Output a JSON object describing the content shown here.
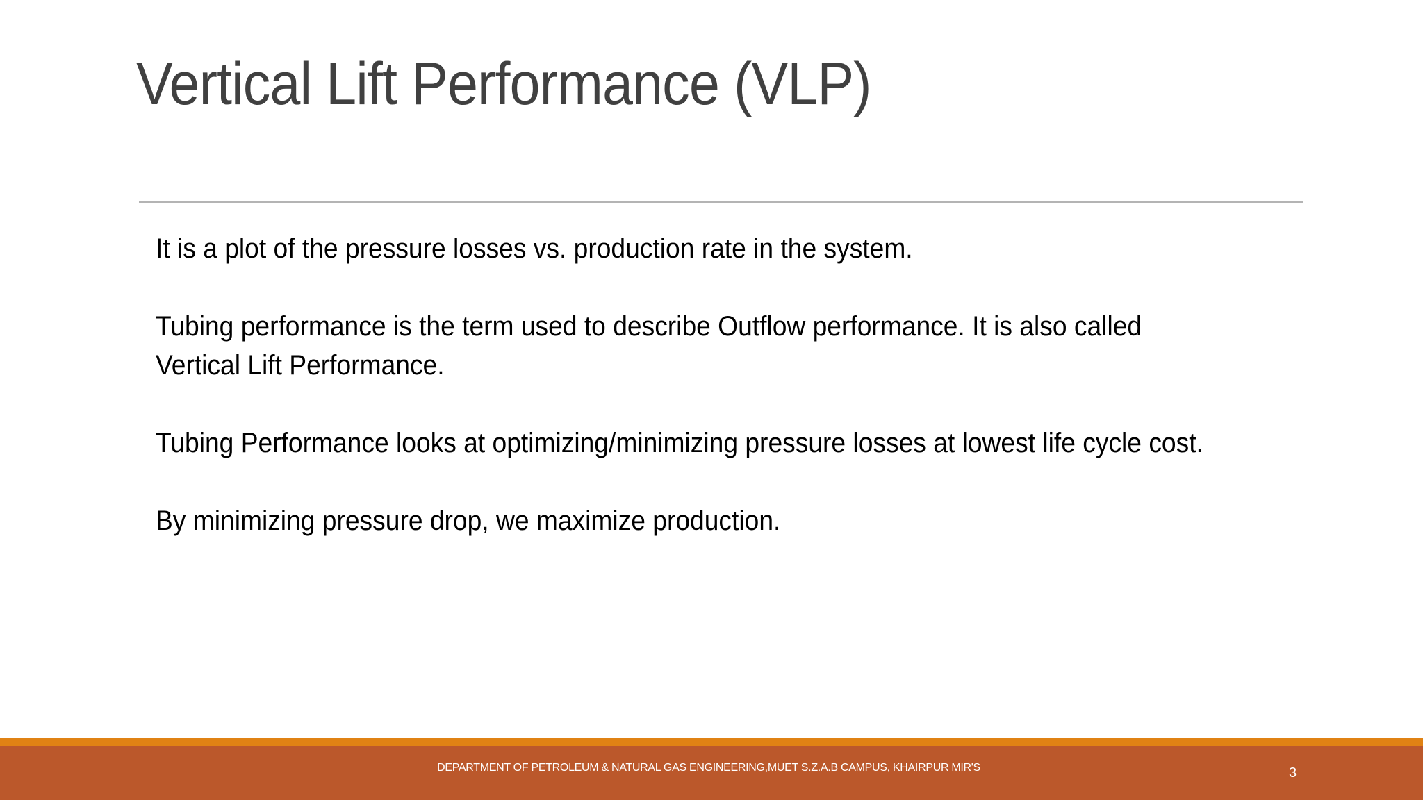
{
  "slide": {
    "title": "Vertical Lift Performance (VLP)",
    "paragraphs": [
      "It is a plot of the pressure losses vs. production rate in the system.",
      "Tubing performance is the term used to describe Outflow performance. It is also called Vertical Lift Performance.",
      "Tubing Performance looks at optimizing/minimizing pressure losses at lowest life cycle cost.",
      "By minimizing pressure drop, we maximize production."
    ],
    "footer": {
      "text": "DEPARTMENT OF PETROLEUM & NATURAL GAS ENGINEERING,MUET S.Z.A.B CAMPUS, KHAIRPUR MIR'S",
      "page_number": "3"
    }
  },
  "colors": {
    "title": "#404040",
    "divider": "#b4b4b4",
    "footer_accent": "#e08214",
    "footer_band": "#bb582b",
    "footer_text": "#ffffff"
  }
}
